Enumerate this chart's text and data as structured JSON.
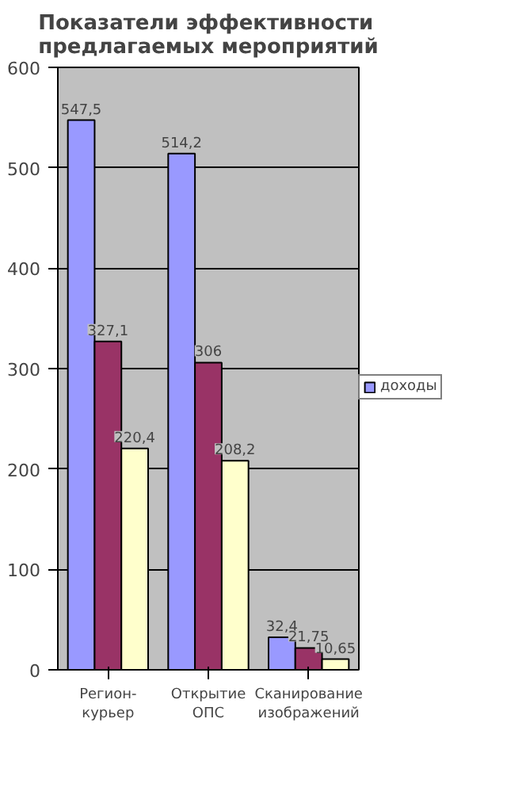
{
  "chart_data": {
    "type": "bar",
    "title": "Показатели эффективности предлагаемых мероприятий",
    "categories": [
      "Регион-курьер",
      "Открытие ОПС",
      "Сканирование изображений"
    ],
    "series": [
      {
        "name": "доходы",
        "color": "#9999ff",
        "values": [
          547.5,
          514.2,
          32.4
        ],
        "value_labels": [
          "547,5",
          "514,2",
          "32,4"
        ]
      },
      {
        "color": "#993366",
        "values": [
          327.1,
          306,
          21.75
        ],
        "value_labels": [
          "327,1",
          "306",
          "21,75"
        ]
      },
      {
        "color": "#ffffcc",
        "values": [
          220.4,
          208.2,
          10.65
        ],
        "value_labels": [
          "220,4",
          "208,2",
          "10,65"
        ]
      }
    ],
    "ylim": [
      0,
      600
    ],
    "yticks": [
      0,
      100,
      200,
      300,
      400,
      500,
      600
    ],
    "grid": "y",
    "legend": "right"
  }
}
